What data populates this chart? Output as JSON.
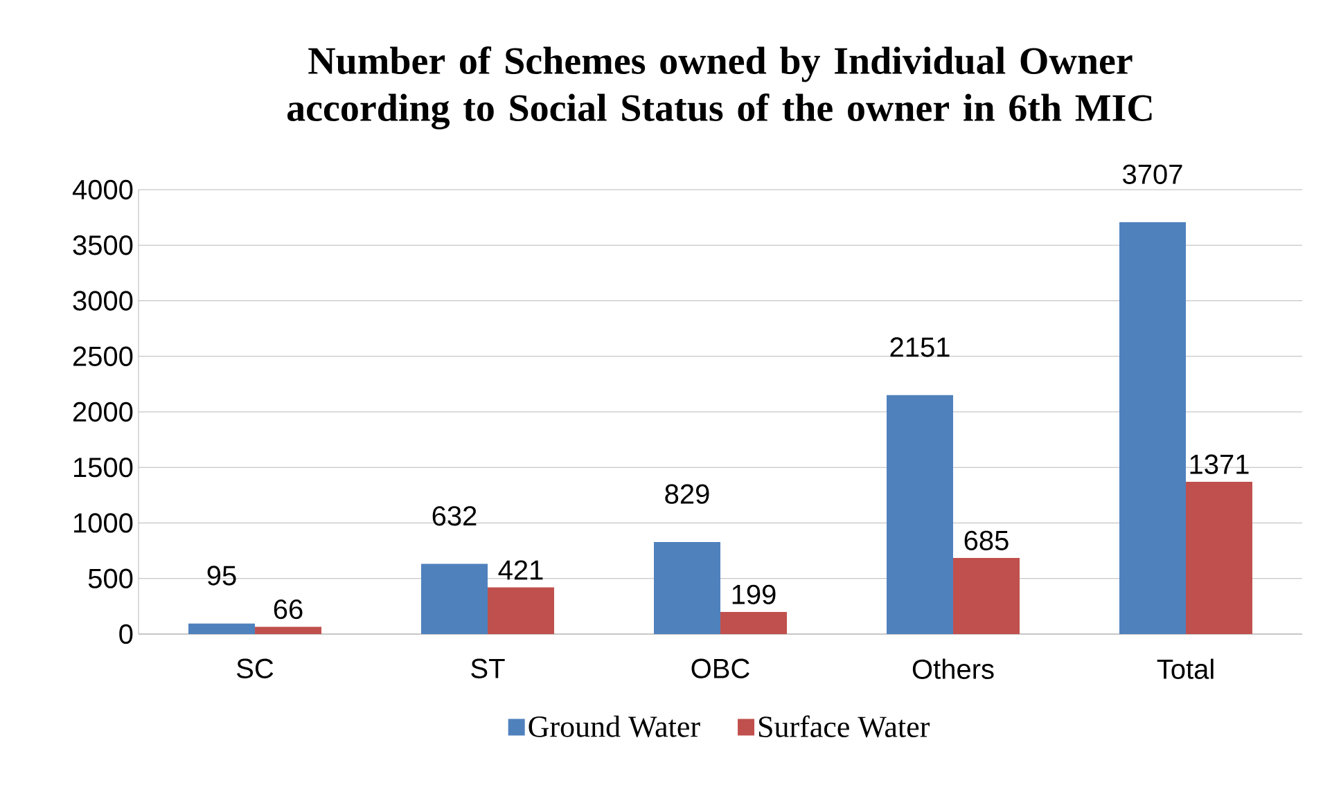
{
  "chart_data": {
    "type": "bar",
    "title": "Number of Schemes owned by Individual Owner according to Social Status of the owner in 6th MIC",
    "categories": [
      "SC",
      "ST",
      "OBC",
      "Others",
      "Total"
    ],
    "series": [
      {
        "name": "Ground Water",
        "color": "#4f81bd",
        "values": [
          95,
          632,
          829,
          2151,
          3707
        ]
      },
      {
        "name": "Surface Water",
        "color": "#c0504d",
        "values": [
          66,
          421,
          199,
          685,
          1371
        ]
      }
    ],
    "ylim": [
      0,
      4000
    ],
    "yticks": [
      0,
      500,
      1000,
      1500,
      2000,
      2500,
      3000,
      3500,
      4000
    ],
    "grid": "y",
    "legend": "bottom",
    "data_labels": true
  }
}
